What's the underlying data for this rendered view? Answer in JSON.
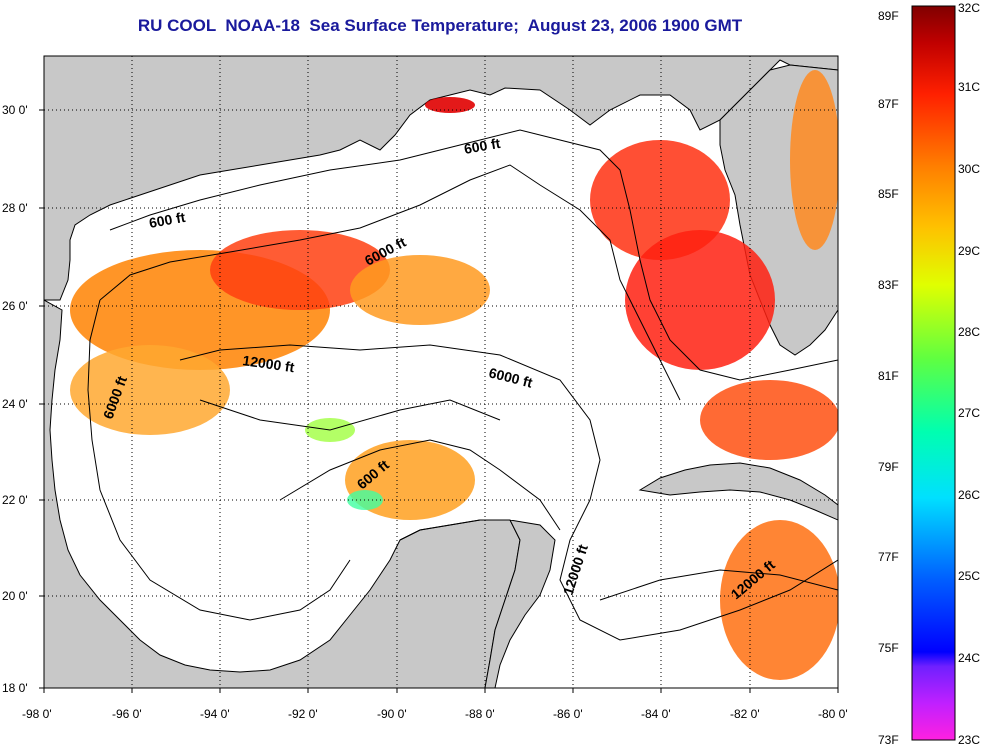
{
  "title": "RU COOL  NOAA-18  Sea Surface Temperature;  August 23, 2006 1900 GMT",
  "map": {
    "lon_ticks": [
      "-98 0'",
      "-96 0'",
      "-94 0'",
      "-92 0'",
      "-90 0'",
      "-88 0'",
      "-86 0'",
      "-84 0'",
      "-82 0'",
      "-80 0'"
    ],
    "lat_ticks": [
      "30 0'",
      "28 0'",
      "26 0'",
      "24 0'",
      "22 0'",
      "20 0'",
      "18 0'"
    ],
    "contour_labels": [
      "600 ft",
      "600 ft",
      "6000 ft",
      "12000 ft",
      "6000 ft",
      "6000 ft",
      "600 ft",
      "12000 ft",
      "12000 ft"
    ],
    "colors": {
      "land": "#c8c8c8",
      "ocean_nodata": "#ffffff",
      "title": "#1a1a9c"
    }
  },
  "colorbar": {
    "fahrenheit_labels": [
      "89F",
      "87F",
      "85F",
      "83F",
      "81F",
      "79F",
      "77F",
      "75F",
      "73F"
    ],
    "celsius_labels": [
      "32C",
      "31C",
      "30C",
      "29C",
      "28C",
      "27C",
      "26C",
      "25C",
      "24C",
      "23C"
    ],
    "range_c": [
      23,
      32
    ],
    "range_f": [
      73,
      89
    ]
  }
}
